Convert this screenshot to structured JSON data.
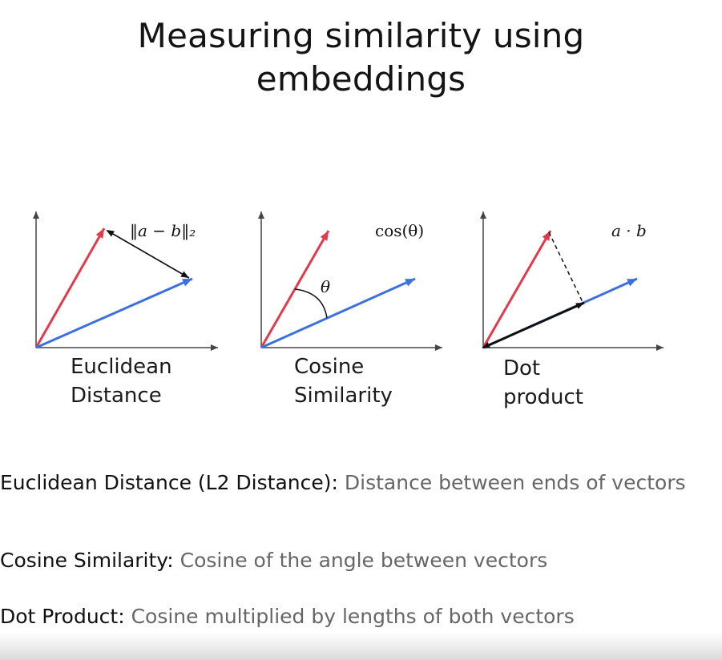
{
  "title": {
    "line1": "Measuring similarity using",
    "line2": "embeddings"
  },
  "panels": [
    {
      "formula": "‖a − b‖₂",
      "caption_line1": "Euclidean",
      "caption_line2": "Distance"
    },
    {
      "formula": "cos(θ)",
      "angle_label": "θ",
      "caption_line1": "Cosine",
      "caption_line2": "Similarity"
    },
    {
      "formula": "a · b",
      "caption_line1": "Dot",
      "caption_line2": "product"
    }
  ],
  "definitions": [
    {
      "term": "Euclidean Distance (L2 Distance):",
      "text": " Distance between ends of vectors"
    },
    {
      "term": "Cosine Similarity:",
      "text": " Cosine of the angle between vectors"
    },
    {
      "term": "Dot Product:",
      "text": " Cosine multiplied by lengths of both vectors"
    }
  ],
  "colors": {
    "vector_a": "#e23a4a",
    "vector_b": "#3c6fe0",
    "axes": "#444444",
    "connector": "#111111"
  }
}
